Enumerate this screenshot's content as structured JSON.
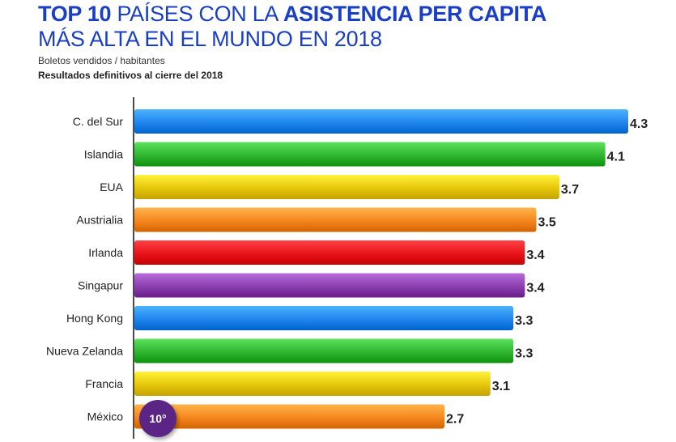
{
  "header": {
    "title_bold": "TOP 10",
    "title_mid": " PAÍSES CON LA ",
    "title_bold2": "ASISTENCIA PER CAPITA",
    "title_line2": "MÁS ALTA EN EL MUNDO EN 2018",
    "subtitle": "Boletos vendidos / habitantes",
    "note": "Resultados definitivos al cierre del 2018"
  },
  "badge": {
    "text": "10°",
    "color": "#5b2586"
  },
  "chart_data": {
    "type": "bar",
    "orientation": "horizontal",
    "categories": [
      "C. del Sur",
      "Islandia",
      "EUA",
      "Austrialia",
      "Irlanda",
      "Singapur",
      "Hong Kong",
      "Nueva Zelanda",
      "Francia",
      "México"
    ],
    "values": [
      4.3,
      4.1,
      3.7,
      3.5,
      3.4,
      3.4,
      3.3,
      3.3,
      3.1,
      2.7
    ],
    "value_labels": [
      "4.3",
      "4.1",
      "3.7",
      "3.5",
      "3.4",
      "3.4",
      "3.3",
      "3.3",
      "3.1",
      "2.7"
    ],
    "colors": [
      "#1f86ee",
      "#2fb52f",
      "#e6c60c",
      "#f5861e",
      "#e8141a",
      "#8b3fae",
      "#1f86ee",
      "#2fb52f",
      "#e6c60c",
      "#f5861e"
    ],
    "xlim": [
      0,
      4.3
    ],
    "grid": false,
    "legend": "none"
  }
}
